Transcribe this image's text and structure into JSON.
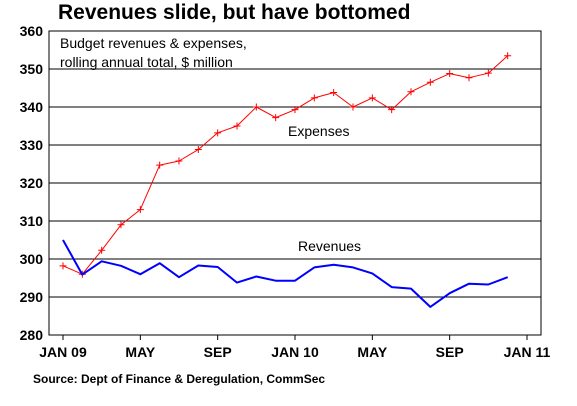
{
  "chart_data": {
    "type": "line",
    "title": "Revenues slide, but have bottomed",
    "subtitle_lines": [
      "Budget revenues & expenses,",
      "rolling annual total, $ million"
    ],
    "source": "Source: Dept of Finance & Deregulation, CommSec",
    "ylim": [
      280,
      360
    ],
    "yticks": [
      280,
      290,
      300,
      310,
      320,
      330,
      340,
      350,
      360
    ],
    "grid": true,
    "x": [
      "2009-01",
      "2009-02",
      "2009-03",
      "2009-04",
      "2009-05",
      "2009-06",
      "2009-07",
      "2009-08",
      "2009-09",
      "2009-10",
      "2009-11",
      "2009-12",
      "2010-01",
      "2010-02",
      "2010-03",
      "2010-04",
      "2010-05",
      "2010-06",
      "2010-07",
      "2010-08",
      "2010-09",
      "2010-10",
      "2010-11",
      "2010-12"
    ],
    "xticks": [
      {
        "label": "JAN 09",
        "index": 0
      },
      {
        "label": "MAY",
        "index": 4
      },
      {
        "label": "SEP",
        "index": 8
      },
      {
        "label": "JAN 10",
        "index": 12
      },
      {
        "label": "MAY",
        "index": 16
      },
      {
        "label": "SEP",
        "index": 20
      },
      {
        "label": "JAN 11",
        "index": 24
      }
    ],
    "xrange": [
      0,
      24
    ],
    "series": [
      {
        "name": "Expenses",
        "color": "#ff0000",
        "marker": "plus",
        "x_start": 0,
        "values": [
          298.2,
          296.0,
          302.3,
          309.0,
          313.0,
          324.7,
          325.8,
          328.8,
          333.2,
          335.0,
          340.0,
          337.2,
          339.3,
          342.4,
          343.8,
          340.0,
          342.4,
          339.3,
          344.0,
          346.5,
          348.8,
          347.7,
          348.9,
          353.5
        ]
      },
      {
        "name": "Revenues",
        "color": "#0000ff",
        "marker": "none",
        "x_start": 0,
        "values": [
          305.0,
          295.9,
          299.4,
          298.2,
          296.0,
          298.9,
          295.2,
          298.3,
          297.9,
          293.8,
          295.4,
          294.3,
          294.3,
          297.8,
          298.5,
          297.8,
          296.2,
          292.6,
          292.2,
          287.4,
          291.0,
          293.5,
          293.3,
          295.2
        ]
      }
    ]
  }
}
